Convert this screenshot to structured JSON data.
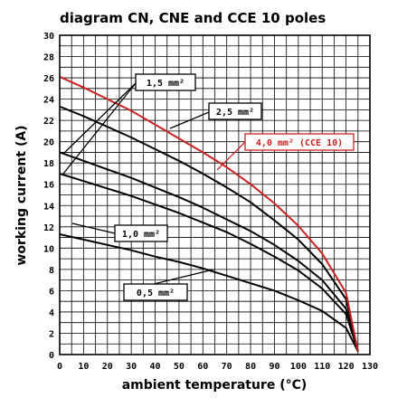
{
  "chart_data": {
    "type": "line",
    "title": "diagram CN, CNE and CCE 10 poles",
    "xlabel": "ambient temperature (°C)",
    "ylabel": "working current (A)",
    "xlim": [
      0,
      130
    ],
    "ylim": [
      0,
      30
    ],
    "x_ticks": [
      0,
      10,
      20,
      30,
      40,
      50,
      60,
      70,
      80,
      90,
      100,
      110,
      120,
      130
    ],
    "y_ticks": [
      0,
      2,
      4,
      6,
      8,
      10,
      12,
      14,
      16,
      18,
      20,
      22,
      24,
      26,
      28,
      30
    ],
    "grid": true,
    "series": [
      {
        "name": "0,5 mm²",
        "color": "#000000",
        "x": [
          0,
          10,
          20,
          30,
          40,
          50,
          60,
          70,
          80,
          90,
          100,
          110,
          120,
          125
        ],
        "y": [
          11.3,
          10.8,
          10.3,
          9.8,
          9.2,
          8.7,
          8.1,
          7.4,
          6.7,
          6.0,
          5.1,
          4.1,
          2.5,
          0.3
        ]
      },
      {
        "name": "1,0 mm²",
        "color": "#000000",
        "x": [
          0,
          10,
          20,
          30,
          40,
          50,
          60,
          70,
          80,
          90,
          100,
          110,
          120,
          125
        ],
        "y": [
          17.0,
          16.3,
          15.6,
          14.9,
          14.1,
          13.3,
          12.4,
          11.5,
          10.4,
          9.2,
          7.9,
          6.2,
          3.8,
          0.3
        ]
      },
      {
        "name": "1,5 mm²",
        "color": "#000000",
        "x": [
          0,
          10,
          20,
          30,
          40,
          50,
          60,
          70,
          80,
          90,
          100,
          110,
          120,
          125
        ],
        "y": [
          19.0,
          18.2,
          17.4,
          16.6,
          15.7,
          14.8,
          13.8,
          12.7,
          11.6,
          10.3,
          8.8,
          7.0,
          4.3,
          0.3
        ]
      },
      {
        "name": "2,5 mm²",
        "color": "#000000",
        "x": [
          0,
          10,
          20,
          30,
          40,
          50,
          60,
          70,
          80,
          90,
          100,
          110,
          120,
          125
        ],
        "y": [
          23.3,
          22.4,
          21.4,
          20.4,
          19.3,
          18.2,
          17.0,
          15.7,
          14.3,
          12.6,
          10.8,
          8.5,
          5.2,
          0.3
        ]
      },
      {
        "name": "4,0 mm² (CCE 10)",
        "color": "#cc2222",
        "x": [
          0,
          10,
          20,
          30,
          40,
          50,
          60,
          70,
          80,
          90,
          100,
          110,
          120,
          125
        ],
        "y": [
          26.1,
          25.1,
          24.0,
          22.9,
          21.6,
          20.3,
          19.0,
          17.6,
          16.0,
          14.2,
          12.1,
          9.5,
          5.8,
          0.3
        ]
      }
    ],
    "annotations": [
      {
        "text": "1,5 mm²",
        "series": 2
      },
      {
        "text": "2,5 mm²",
        "series": 3
      },
      {
        "text": "4,0 mm² (CCE 10)",
        "series": 4
      },
      {
        "text": "1,0 mm²",
        "series": 1
      },
      {
        "text": "0,5 mm²",
        "series": 0
      }
    ]
  }
}
